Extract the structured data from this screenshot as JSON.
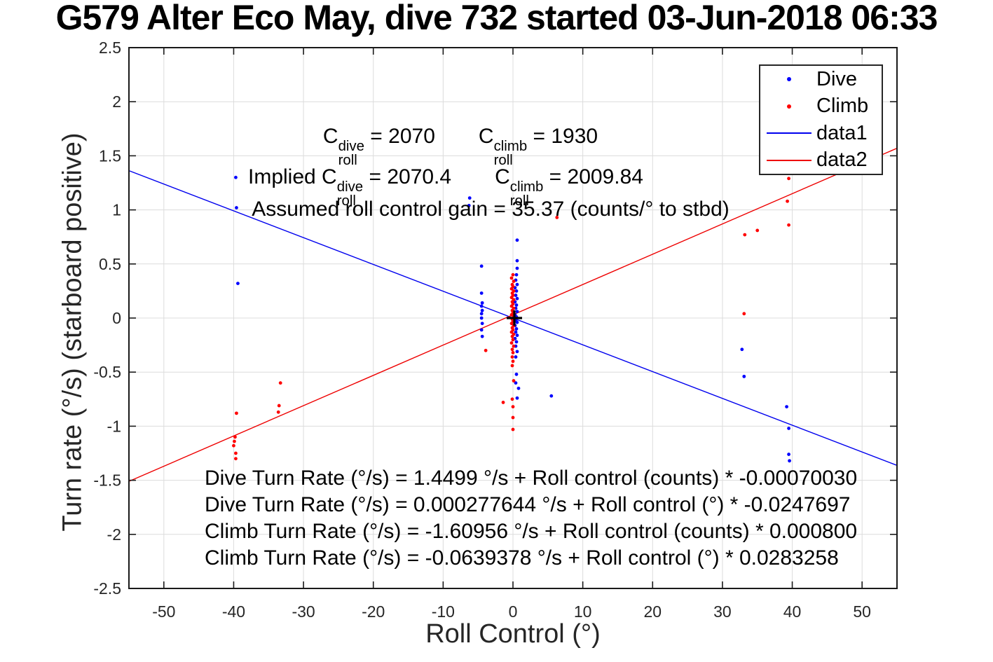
{
  "title": "G579 Alter Eco May, dive 732 started 03-Jun-2018 06:33",
  "axes": {
    "xlabel": "Roll Control (°)",
    "ylabel": "Turn rate (°/s) (starboard positive)",
    "xtick_labels": [
      "-50",
      "-40",
      "-30",
      "-20",
      "-10",
      "0",
      "10",
      "20",
      "30",
      "40",
      "50"
    ],
    "ytick_labels": [
      "-2.5",
      "-2",
      "-1.5",
      "-1",
      "-0.5",
      "0",
      "0.5",
      "1",
      "1.5",
      "2",
      "2.5"
    ]
  },
  "legend": {
    "entries": [
      {
        "label": "Dive",
        "marker": "dot",
        "color": "#0000ff"
      },
      {
        "label": "Climb",
        "marker": "dot",
        "color": "#ff0000"
      },
      {
        "label": "data1",
        "marker": "line",
        "color": "#0000ee"
      },
      {
        "label": "data2",
        "marker": "line",
        "color": "#ee0000"
      }
    ]
  },
  "annotations": {
    "line1": {
      "prefix": "",
      "terms": [
        {
          "base": "C",
          "sup": "dive",
          "sub": "roll",
          "rhs": " = 2070"
        },
        {
          "base": "C",
          "sup": "climb",
          "sub": "roll",
          "rhs": " = 1930"
        }
      ]
    },
    "line2": {
      "prefix": "Implied ",
      "terms": [
        {
          "base": "C",
          "sup": "dive",
          "sub": "roll",
          "rhs": " = 2070.4"
        },
        {
          "base": "C",
          "sup": "climb",
          "sub": "roll",
          "rhs": " = 2009.84"
        }
      ]
    },
    "line3": "Assumed roll control gain = 35.37 (counts/° to stbd)",
    "equations": [
      "Dive Turn Rate (°/s) = 1.4499 °/s + Roll control (counts) * -0.00070030",
      "Dive Turn Rate (°/s) = 0.000277644 °/s + Roll control (°) * -0.0247697",
      "Climb Turn Rate (°/s) = -1.60956 °/s + Roll control (counts) * 0.000800",
      "Climb Turn Rate (°/s) = -0.0639378 °/s + Roll control (°) * 0.0283258"
    ]
  },
  "chart_data": {
    "type": "scatter",
    "title": "G579 Alter Eco May, dive 732 started 03-Jun-2018 06:33",
    "xlabel": "Roll Control (°)",
    "ylabel": "Turn rate (°/s) (starboard positive)",
    "xlim": [
      -55,
      55
    ],
    "ylim": [
      -2.5,
      2.5
    ],
    "xticks": [
      -50,
      -40,
      -30,
      -20,
      -10,
      0,
      10,
      20,
      30,
      40,
      50
    ],
    "yticks": [
      -2.5,
      -2,
      -1.5,
      -1,
      -0.5,
      0,
      0.5,
      1,
      1.5,
      2,
      2.5
    ],
    "grid": true,
    "legend_position": "top-right",
    "colors": {
      "grid": "#dcdcdc",
      "axis": "#1a1a1a"
    },
    "series": [
      {
        "name": "Dive",
        "type": "scatter",
        "color": "#0000ff",
        "points": [
          [
            -39.7,
            1.3
          ],
          [
            -39.6,
            1.02
          ],
          [
            -39.4,
            0.32
          ],
          [
            -6.2,
            1.11
          ],
          [
            -6.3,
            1.04
          ],
          [
            -4.5,
            0.48
          ],
          [
            -4.5,
            0.23
          ],
          [
            -4.4,
            0.14
          ],
          [
            -4.5,
            0.11
          ],
          [
            -4.4,
            0.07
          ],
          [
            -4.5,
            0.04
          ],
          [
            -4.5,
            0.0
          ],
          [
            -4.4,
            -0.05
          ],
          [
            -4.5,
            -0.11
          ],
          [
            -4.4,
            -0.17
          ],
          [
            0.6,
            0.72
          ],
          [
            0.6,
            0.53
          ],
          [
            0.6,
            0.46
          ],
          [
            0.5,
            0.4
          ],
          [
            0.4,
            0.35
          ],
          [
            0.6,
            0.31
          ],
          [
            0.3,
            0.28
          ],
          [
            0.5,
            0.25
          ],
          [
            0.4,
            0.21
          ],
          [
            0.6,
            0.18
          ],
          [
            0.3,
            0.15
          ],
          [
            0.5,
            0.12
          ],
          [
            0.4,
            0.09
          ],
          [
            0.6,
            0.06
          ],
          [
            0.3,
            0.03
          ],
          [
            0.5,
            0.01
          ],
          [
            0.4,
            -0.02
          ],
          [
            0.6,
            -0.04
          ],
          [
            0.3,
            -0.07
          ],
          [
            0.5,
            -0.1
          ],
          [
            0.4,
            -0.13
          ],
          [
            0.6,
            -0.16
          ],
          [
            0.3,
            -0.19
          ],
          [
            0.5,
            -0.22
          ],
          [
            0.4,
            -0.26
          ],
          [
            0.6,
            -0.31
          ],
          [
            0.4,
            -0.36
          ],
          [
            0.5,
            -0.52
          ],
          [
            0.4,
            -0.6
          ],
          [
            0.8,
            -0.65
          ],
          [
            0.6,
            -0.74
          ],
          [
            5.5,
            -0.72
          ],
          [
            32.8,
            -0.29
          ],
          [
            33.1,
            -0.54
          ],
          [
            39.2,
            -0.82
          ],
          [
            39.5,
            -1.02
          ],
          [
            39.5,
            -1.26
          ],
          [
            39.6,
            -1.32
          ]
        ]
      },
      {
        "name": "Climb",
        "type": "scatter",
        "color": "#ff0000",
        "points": [
          [
            -39.6,
            -0.88
          ],
          [
            -39.8,
            -1.1
          ],
          [
            -39.9,
            -1.14
          ],
          [
            -40.0,
            -1.18
          ],
          [
            -39.7,
            -1.25
          ],
          [
            -39.7,
            -1.3
          ],
          [
            -33.3,
            -0.6
          ],
          [
            -33.5,
            -0.81
          ],
          [
            -33.6,
            -0.87
          ],
          [
            -3.9,
            -0.3
          ],
          [
            -1.4,
            -0.78
          ],
          [
            6.3,
            0.93
          ],
          [
            33.2,
            0.77
          ],
          [
            35.0,
            0.81
          ],
          [
            33.1,
            0.04
          ],
          [
            39.5,
            1.29
          ],
          [
            39.3,
            1.08
          ],
          [
            39.5,
            0.86
          ],
          [
            0.0,
            0.4
          ],
          [
            -0.2,
            0.37
          ],
          [
            0.1,
            0.34
          ],
          [
            -0.1,
            0.31
          ],
          [
            0.0,
            0.29
          ],
          [
            -0.2,
            0.27
          ],
          [
            0.1,
            0.25
          ],
          [
            -0.1,
            0.23
          ],
          [
            0.0,
            0.21
          ],
          [
            -0.2,
            0.19
          ],
          [
            0.1,
            0.17
          ],
          [
            -0.1,
            0.15
          ],
          [
            0.0,
            0.13
          ],
          [
            -0.2,
            0.11
          ],
          [
            0.1,
            0.09
          ],
          [
            -0.1,
            0.07
          ],
          [
            0.0,
            0.05
          ],
          [
            -0.2,
            0.03
          ],
          [
            0.1,
            0.01
          ],
          [
            -0.1,
            -0.01
          ],
          [
            0.0,
            -0.03
          ],
          [
            -0.2,
            -0.05
          ],
          [
            0.1,
            -0.07
          ],
          [
            -0.1,
            -0.09
          ],
          [
            0.0,
            -0.11
          ],
          [
            -0.2,
            -0.13
          ],
          [
            0.1,
            -0.15
          ],
          [
            -0.1,
            -0.17
          ],
          [
            0.0,
            -0.2
          ],
          [
            -0.2,
            -0.23
          ],
          [
            0.1,
            -0.26
          ],
          [
            -0.1,
            -0.29
          ],
          [
            0.0,
            -0.32
          ],
          [
            -0.1,
            -0.36
          ],
          [
            0.0,
            -0.4
          ],
          [
            -0.1,
            -0.44
          ],
          [
            0.1,
            -0.58
          ],
          [
            -0.1,
            -0.75
          ],
          [
            0.0,
            -0.82
          ],
          [
            0.0,
            -0.92
          ],
          [
            0.0,
            -1.03
          ]
        ]
      },
      {
        "name": "data1",
        "type": "line",
        "color": "#0000ee",
        "endpoints": [
          [
            -55,
            1.3626
          ],
          [
            55,
            -1.3623
          ]
        ]
      },
      {
        "name": "data2",
        "type": "line",
        "color": "#ee0000",
        "endpoints": [
          [
            -55,
            -1.51
          ],
          [
            55,
            1.57
          ]
        ]
      },
      {
        "name": "origin-marker",
        "type": "plus",
        "color": "#000000",
        "points": [
          [
            0.2,
            0.0
          ]
        ]
      }
    ]
  }
}
